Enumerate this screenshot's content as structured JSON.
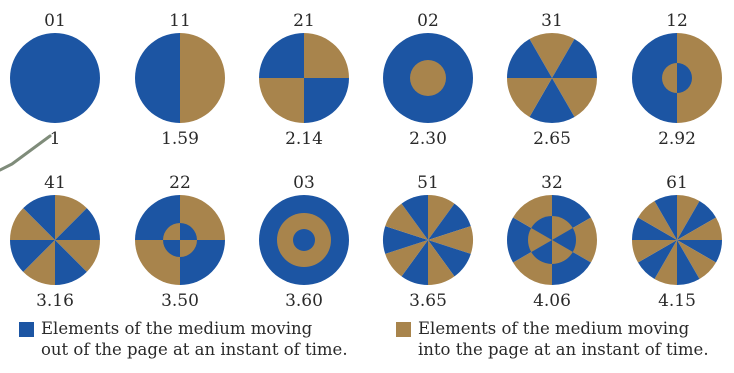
{
  "colors": {
    "out": "#1c55a3",
    "in": "#a8844c",
    "pointer": "#7f8c7a"
  },
  "modes": [
    {
      "label": "01",
      "ratio": "1",
      "type": "solid",
      "pattern": "full"
    },
    {
      "label": "11",
      "ratio": "1.59",
      "type": "halves",
      "pattern": "blue-left"
    },
    {
      "label": "21",
      "ratio": "2.14",
      "type": "sectors",
      "count": 4
    },
    {
      "label": "02",
      "ratio": "2.30",
      "type": "rings",
      "bands": [
        "out",
        "in"
      ]
    },
    {
      "label": "31",
      "ratio": "2.65",
      "type": "sectors",
      "count": 6
    },
    {
      "label": "12",
      "ratio": "2.92",
      "type": "mixed"
    },
    {
      "label": "41",
      "ratio": "3.16",
      "type": "sectors",
      "count": 8
    },
    {
      "label": "22",
      "ratio": "3.50",
      "type": "mixed"
    },
    {
      "label": "03",
      "ratio": "3.60",
      "type": "rings",
      "bands": [
        "out",
        "in",
        "out"
      ]
    },
    {
      "label": "51",
      "ratio": "3.65",
      "type": "sectors",
      "count": 10
    },
    {
      "label": "32",
      "ratio": "4.06",
      "type": "mixed"
    },
    {
      "label": "61",
      "ratio": "4.15",
      "type": "sectors",
      "count": 12
    }
  ],
  "legend": {
    "out_line1": "Elements of the medium moving",
    "out_line2": "out of the page at an instant of time.",
    "in_line1": "Elements of the medium moving",
    "in_line2": "into the page at an instant of time."
  }
}
